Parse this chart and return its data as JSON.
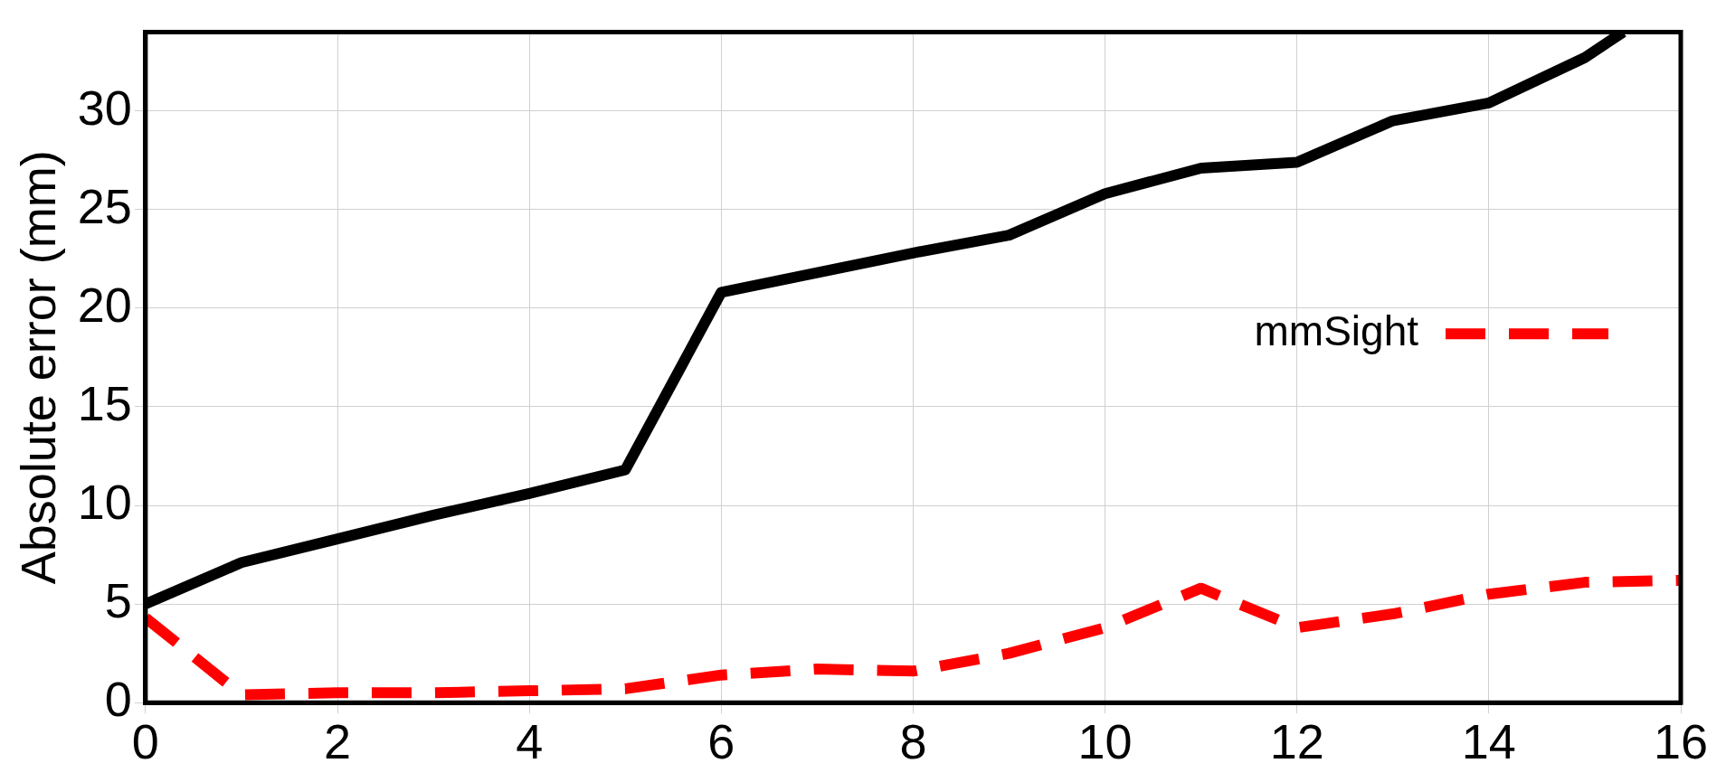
{
  "chart_data": {
    "type": "line",
    "ylabel": "Absolute error (mm)",
    "xlim": [
      0,
      16
    ],
    "xticks": [
      0,
      2,
      4,
      6,
      8,
      10,
      12,
      14,
      16
    ],
    "ylim": [
      0,
      34
    ],
    "yticks": [
      0,
      5,
      10,
      15,
      20,
      25,
      30
    ],
    "grid": true,
    "legend": "right",
    "marker": "none",
    "series": [
      {
        "color": "#000000",
        "line_style": "solid",
        "x": [
          0,
          1,
          2,
          3,
          4,
          5,
          6,
          7,
          8,
          9,
          10,
          11,
          12,
          13,
          14,
          15,
          15.4
        ],
        "values": [
          5,
          7.1,
          8.3,
          9.5,
          10.6,
          11.8,
          20.8,
          21.8,
          22.8,
          23.7,
          25.8,
          27.1,
          27.4,
          29.5,
          30.4,
          32.7,
          34
        ]
      },
      {
        "name": "mmSight",
        "color": "#ff0000",
        "line_style": "dashed",
        "x": [
          0,
          1,
          2,
          3,
          4,
          5,
          6,
          7,
          8,
          9,
          10,
          11,
          12,
          13,
          14,
          15,
          16
        ],
        "values": [
          4.3,
          0.4,
          0.5,
          0.5,
          0.6,
          0.7,
          1.4,
          1.7,
          1.6,
          2.5,
          3.8,
          5.8,
          3.8,
          4.5,
          5.5,
          6.1,
          6.2
        ]
      }
    ]
  }
}
